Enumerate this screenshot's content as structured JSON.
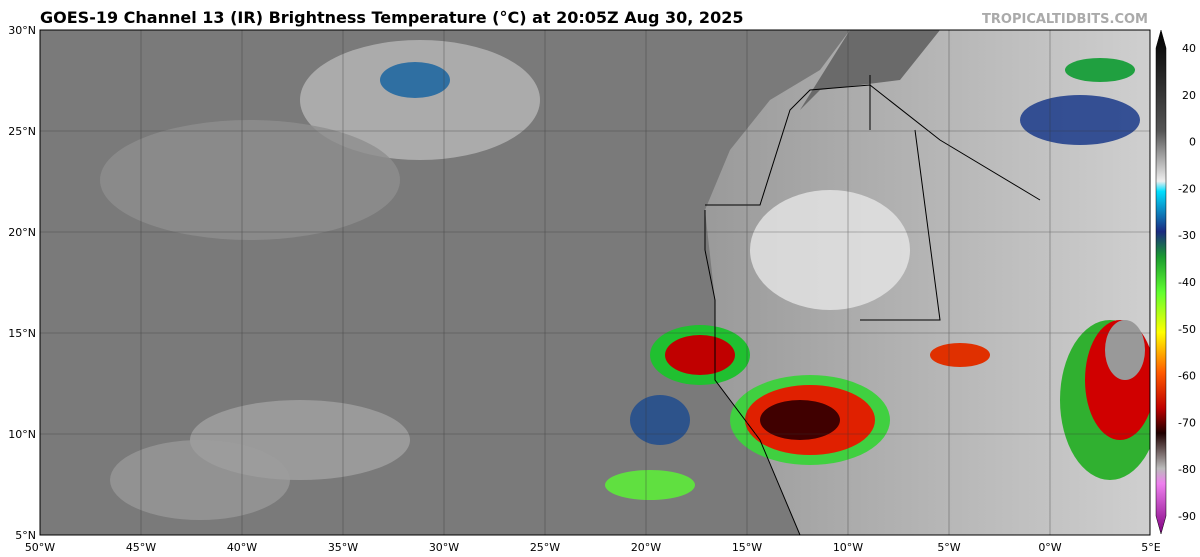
{
  "header": {
    "title": "GOES-19 Channel 13 (IR) Brightness Temperature (°C) at 20:05Z Aug 30, 2025",
    "credit": "TROPICALTIDBITS.COM"
  },
  "map": {
    "lat_labels": [
      "30°N",
      "25°N",
      "20°N",
      "15°N",
      "10°N",
      "5°N"
    ],
    "lon_labels": [
      "50°W",
      "45°W",
      "40°W",
      "35°W",
      "30°W",
      "25°W",
      "20°W",
      "15°W",
      "10°W",
      "5°W",
      "0°W",
      "5°E"
    ]
  },
  "colorbar": {
    "ticks": [
      40,
      20,
      0,
      -20,
      -30,
      -40,
      -50,
      -60,
      -70,
      -80,
      -90
    ]
  }
}
